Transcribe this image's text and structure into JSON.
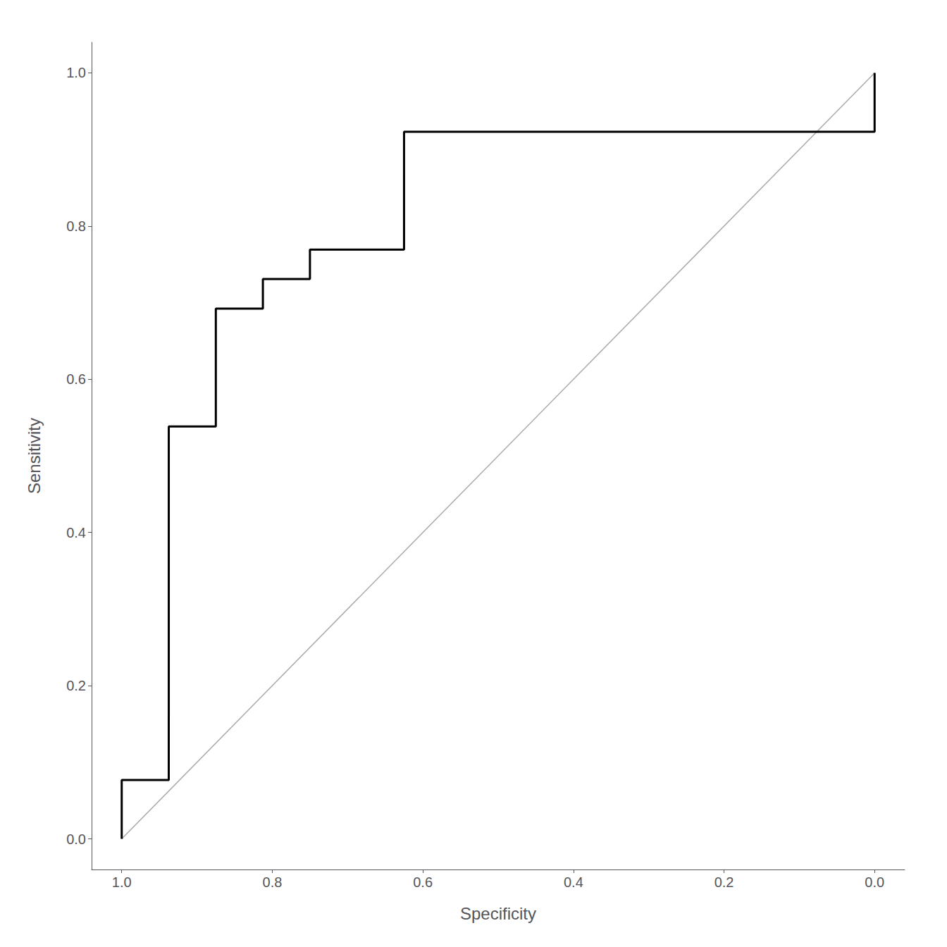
{
  "chart_data": {
    "type": "line",
    "xlabel": "Specificity",
    "ylabel": "Sensitivity",
    "xlim": [
      1.04,
      -0.04
    ],
    "ylim": [
      -0.04,
      1.04
    ],
    "xticks": [
      {
        "value": 1.0,
        "label": "1.0"
      },
      0.8,
      0.6,
      0.4,
      0.2,
      {
        "value": 0.0,
        "label": "0.0"
      }
    ],
    "yticks": [
      {
        "value": 0.0,
        "label": "0.0"
      },
      0.2,
      0.4,
      0.6,
      0.8,
      {
        "value": 1.0,
        "label": "1.0"
      }
    ],
    "grid": false,
    "series": [
      {
        "color": "#aaaaaa",
        "x": [
          1.0,
          0.0
        ],
        "values": [
          0.0,
          1.0
        ]
      },
      {
        "color": "#000000",
        "x": [
          1.0,
          1.0,
          0.9375,
          0.9375,
          0.875,
          0.875,
          0.8125,
          0.8125,
          0.75,
          0.75,
          0.625,
          0.625,
          0.5625,
          0.5625,
          0.0625,
          0.0625,
          0.0,
          0.0
        ],
        "values": [
          0.0,
          0.0769,
          0.0769,
          0.5385,
          0.5385,
          0.6923,
          0.6923,
          0.7308,
          0.7308,
          0.7692,
          0.7692,
          0.9231,
          0.9231,
          0.9231,
          0.9231,
          0.9231,
          0.9231,
          1.0
        ]
      }
    ]
  }
}
